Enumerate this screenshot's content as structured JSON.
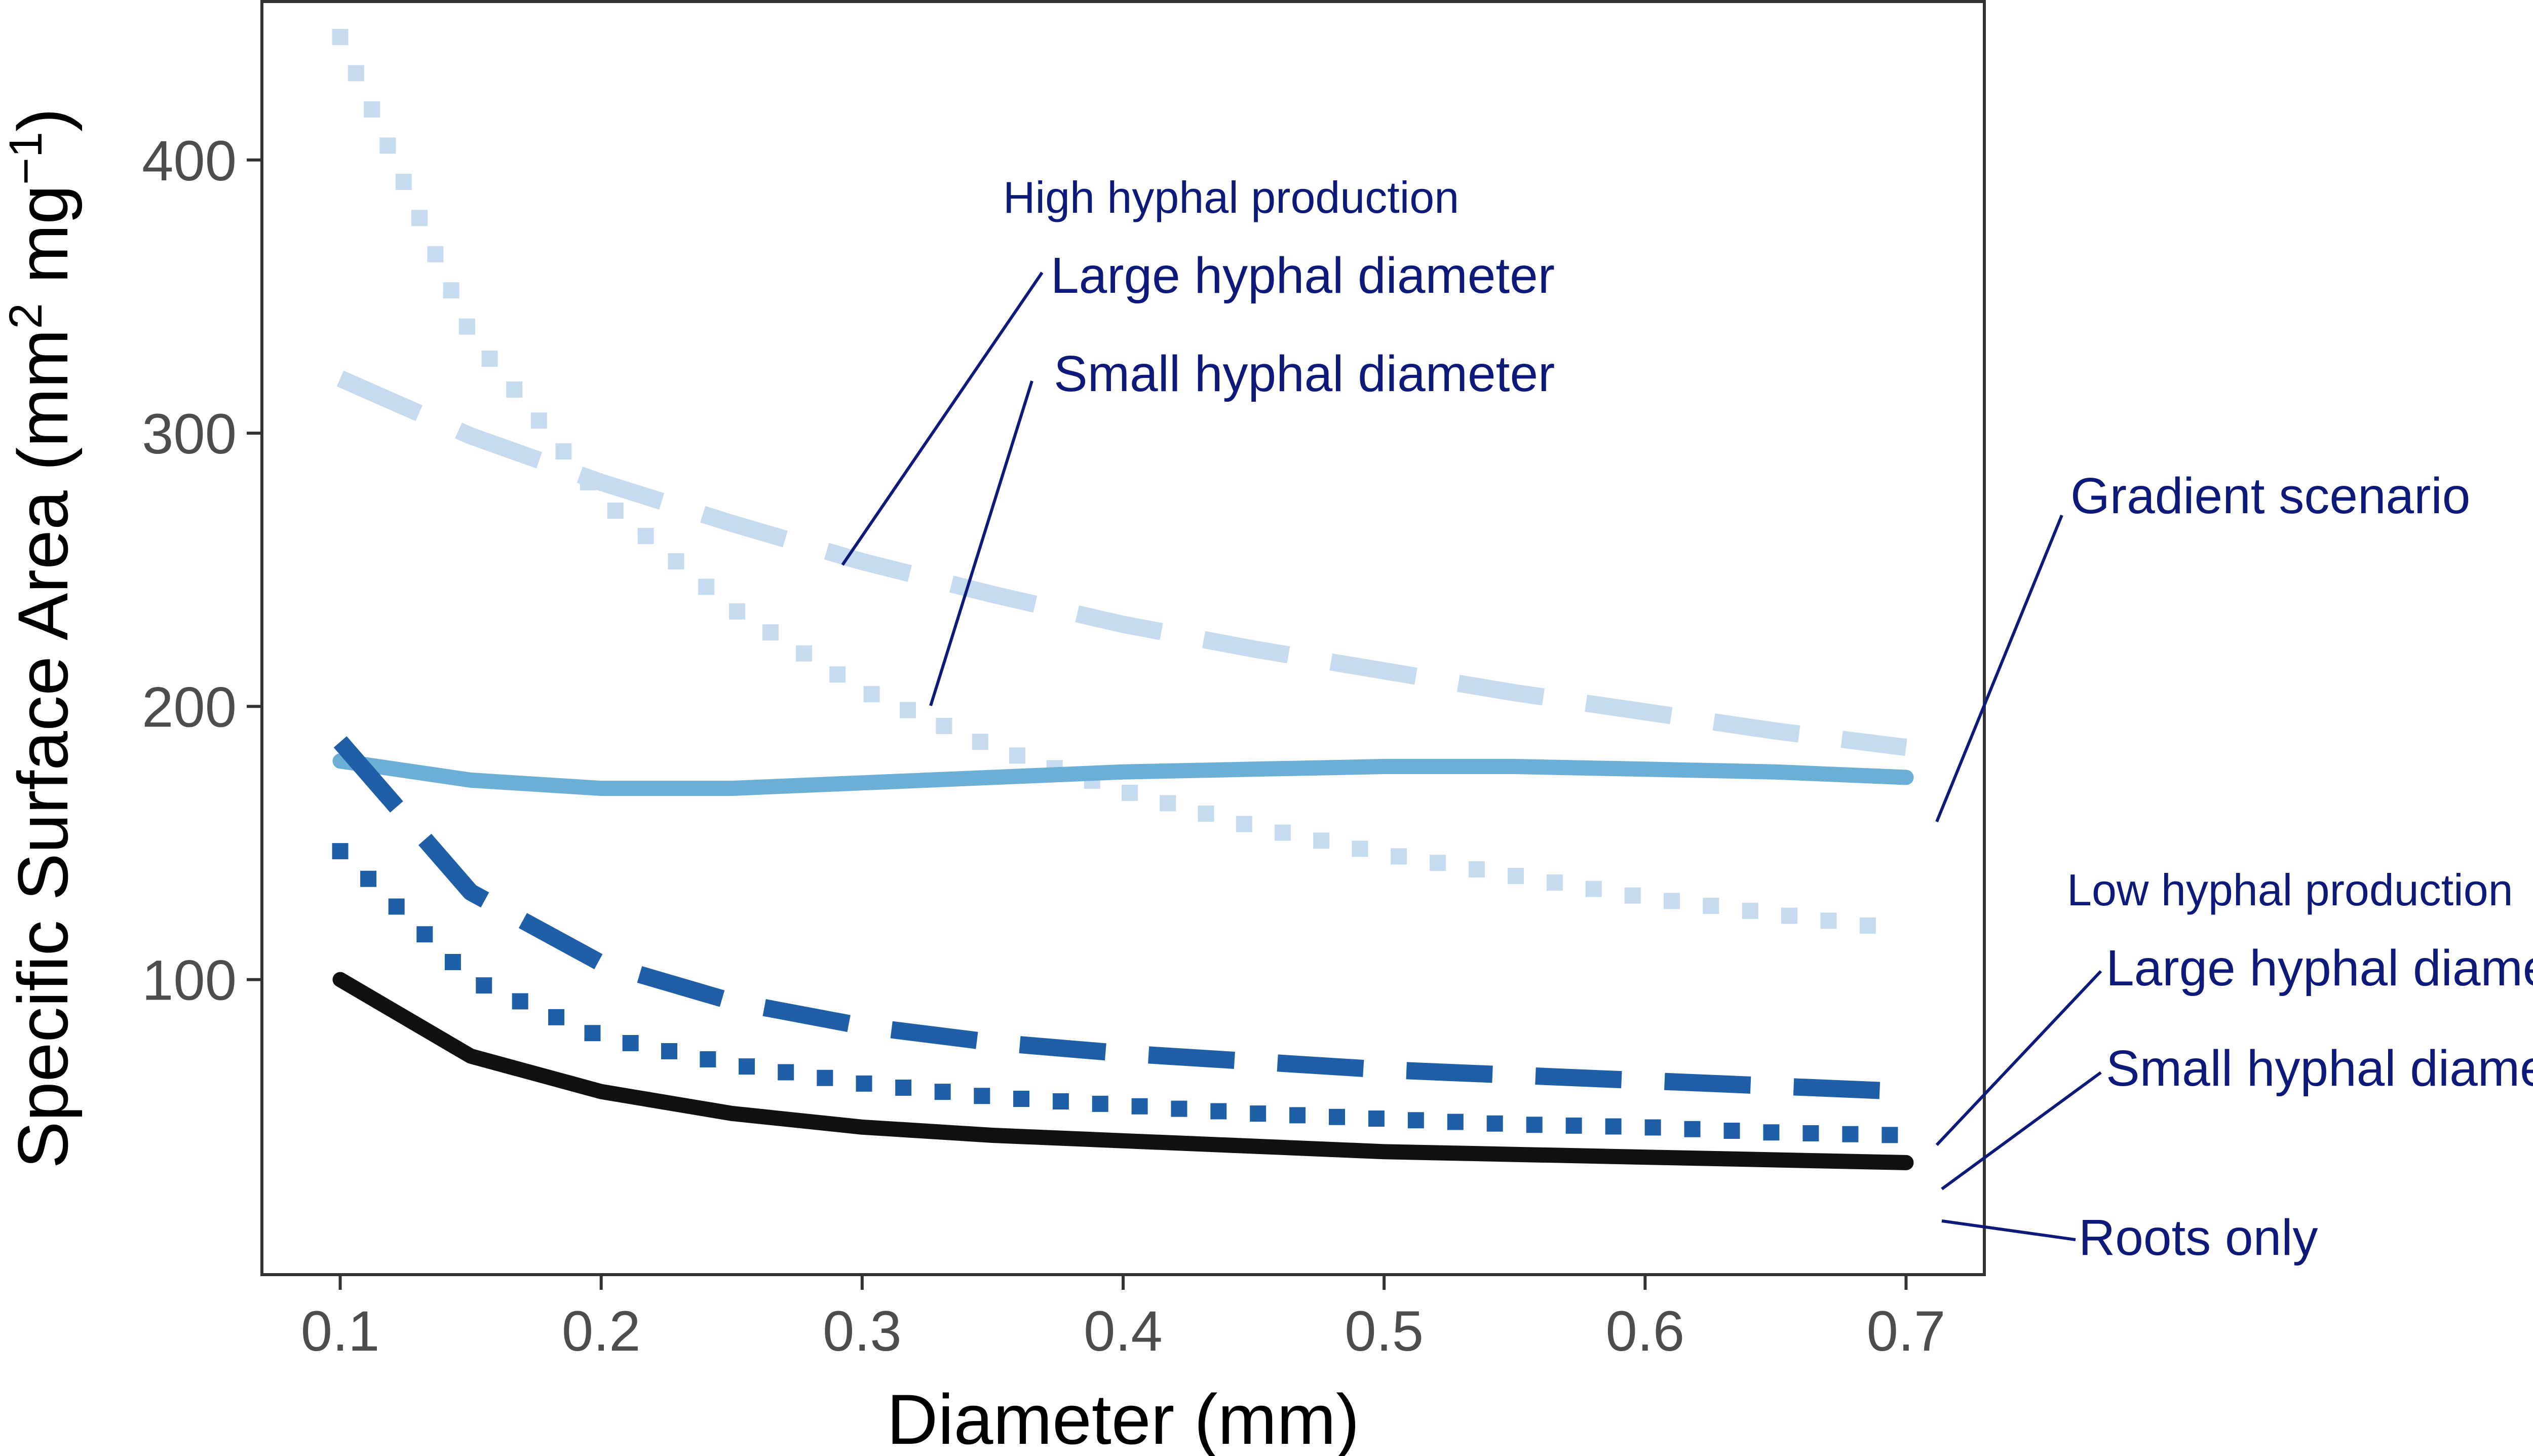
{
  "chart_data": {
    "type": "line",
    "title": "",
    "xlabel": "Diameter (mm)",
    "ylabel": {
      "base": "Specific Surface Area (mm",
      "sup1": "2",
      "mid": " mg",
      "sup2": "−1",
      "end": ")"
    },
    "xlim": [
      0.07,
      0.73
    ],
    "ylim": [
      -8,
      458
    ],
    "x_ticks": [
      "0.1",
      "0.2",
      "0.3",
      "0.4",
      "0.5",
      "0.6",
      "0.7"
    ],
    "y_ticks": [
      "100",
      "200",
      "300",
      "400"
    ],
    "grid": false,
    "x": [
      0.1,
      0.15,
      0.2,
      0.25,
      0.3,
      0.35,
      0.4,
      0.45,
      0.5,
      0.55,
      0.6,
      0.65,
      0.7
    ],
    "series": [
      {
        "id": "high-large",
        "color": "#c6dbef",
        "linestyle": "dashed",
        "values": [
          320,
          299,
          282,
          267,
          253,
          241,
          230,
          221,
          213,
          205,
          198,
          191,
          185
        ]
      },
      {
        "id": "high-small",
        "color": "#c6dbef",
        "linestyle": "dotted",
        "values": [
          445,
          336,
          276,
          236,
          206,
          185,
          169,
          156,
          146,
          138,
          130,
          124,
          118
        ]
      },
      {
        "id": "gradient",
        "color": "#6baed6",
        "linestyle": "solid",
        "values": [
          180,
          173,
          170,
          170,
          172,
          174,
          176,
          177,
          178,
          178,
          177,
          176,
          174
        ]
      },
      {
        "id": "low-large",
        "color": "#1f5fa8",
        "linestyle": "dashed",
        "values": [
          187,
          132,
          106,
          92,
          83,
          77,
          73,
          70,
          67,
          65,
          63,
          61,
          59
        ]
      },
      {
        "id": "low-small",
        "color": "#1f5fa8",
        "linestyle": "dotted",
        "values": [
          147,
          100,
          79,
          69,
          62,
          57,
          54,
          51,
          49,
          47,
          46,
          44,
          43
        ]
      },
      {
        "id": "roots",
        "color": "#111111",
        "linestyle": "solid",
        "values": [
          100,
          72,
          59,
          51,
          46,
          43,
          41,
          39,
          37,
          36,
          35,
          34,
          33
        ]
      }
    ],
    "annotations": {
      "high_heading": "High hyphal production",
      "high_large": "Large hyphal diameter",
      "high_small": "Small hyphal diameter",
      "gradient": "Gradient scenario",
      "low_heading": "Low hyphal production",
      "low_large": "Large hyphal diameter",
      "low_small": "Small hyphal diameter",
      "roots": "Roots only"
    },
    "annotation_color": "#0d1a7a"
  }
}
